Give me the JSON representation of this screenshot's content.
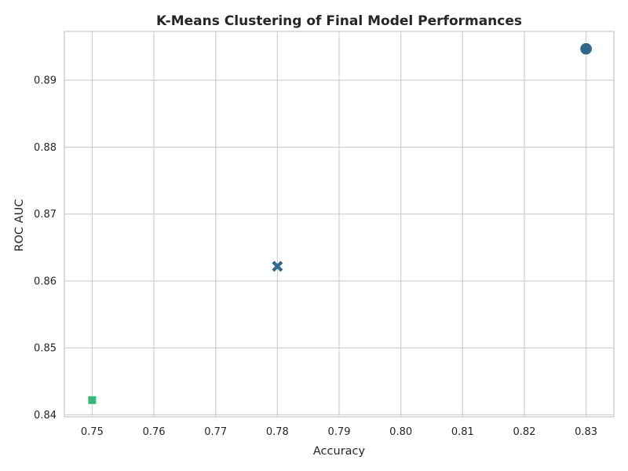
{
  "chart_data": {
    "type": "scatter",
    "title": "K-Means Clustering of Final Model Performances",
    "xlabel": "Accuracy",
    "ylabel": "ROC AUC",
    "xlim": [
      0.7455,
      0.8345
    ],
    "ylim": [
      0.8397,
      0.8973
    ],
    "x_ticks": [
      0.75,
      0.76,
      0.77,
      0.78,
      0.79,
      0.8,
      0.81,
      0.82,
      0.83
    ],
    "x_tick_labels": [
      "0.75",
      "0.76",
      "0.77",
      "0.78",
      "0.79",
      "0.80",
      "0.81",
      "0.82",
      "0.83"
    ],
    "y_ticks": [
      0.84,
      0.85,
      0.86,
      0.87,
      0.88,
      0.89
    ],
    "y_tick_labels": [
      "0.84",
      "0.85",
      "0.86",
      "0.87",
      "0.88",
      "0.89"
    ],
    "grid": true,
    "legend": "none",
    "points": [
      {
        "x": 0.83,
        "y": 0.8947,
        "marker": "circle",
        "color": "#31688e"
      },
      {
        "x": 0.78,
        "y": 0.8622,
        "marker": "x",
        "color": "#31688e"
      },
      {
        "x": 0.75,
        "y": 0.8422,
        "marker": "square",
        "color": "#35b779"
      }
    ]
  }
}
